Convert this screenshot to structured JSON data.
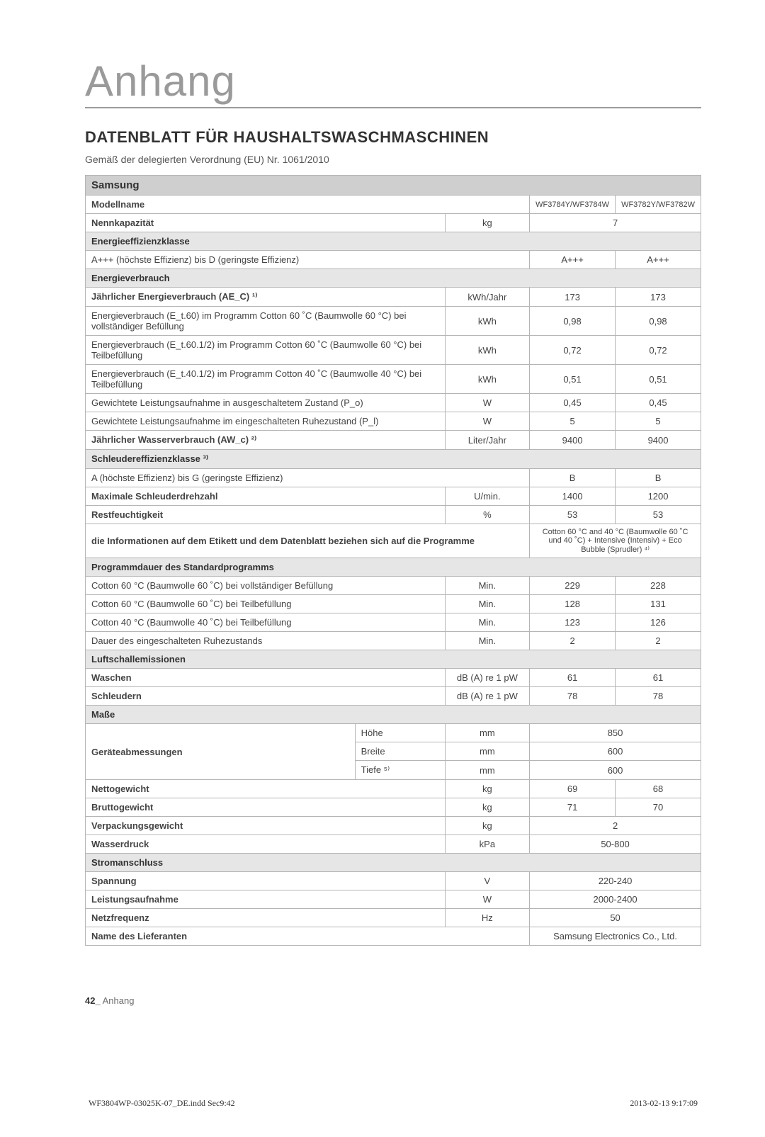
{
  "page_title": "Anhang",
  "section_title": "DATENBLATT FÜR HAUSHALTSWASCHMASCHINEN",
  "regulation_note": "Gemäß der delegierten Verordnung (EU) Nr. 1061/2010",
  "brand_row": "Samsung",
  "model_header": "Modellname",
  "models": [
    "WF3784Y/WF3784W",
    "WF3782Y/WF3782W"
  ],
  "rows": {
    "capacity": {
      "label": "Nennkapazität",
      "unit": "kg",
      "val": "7"
    },
    "eff_class_hdr": "Energieeffizienzklasse",
    "eff_class": {
      "label": "A+++ (höchste Effizienz) bis D (geringste Effizienz)",
      "v1": "A+++",
      "v2": "A+++"
    },
    "energy_hdr": "Energieverbrauch",
    "annual_energy": {
      "label": "Jährlicher Energieverbrauch (AE_C) ¹⁾",
      "unit": "kWh/Jahr",
      "v1": "173",
      "v2": "173"
    },
    "e_t60": {
      "label": "Energieverbrauch (E_t.60) im Programm Cotton 60 ˚C (Baumwolle 60 °C) bei vollständiger Befüllung",
      "unit": "kWh",
      "v1": "0,98",
      "v2": "0,98"
    },
    "e_t60_half": {
      "label": "Energieverbrauch (E_t.60.1/2) im Programm Cotton 60 ˚C (Baumwolle 60 °C) bei Teilbefüllung",
      "unit": "kWh",
      "v1": "0,72",
      "v2": "0,72"
    },
    "e_t40_half": {
      "label": "Energieverbrauch (E_t.40.1/2) im Programm Cotton 40 ˚C (Baumwolle 40 °C) bei Teilbefüllung",
      "unit": "kWh",
      "v1": "0,51",
      "v2": "0,51"
    },
    "p_o": {
      "label": "Gewichtete Leistungsaufnahme in ausgeschaltetem Zustand (P_o)",
      "unit": "W",
      "v1": "0,45",
      "v2": "0,45"
    },
    "p_l": {
      "label": "Gewichtete Leistungsaufnahme im eingeschalteten Ruhezustand (P_l)",
      "unit": "W",
      "v1": "5",
      "v2": "5"
    },
    "water": {
      "label": "Jährlicher Wasserverbrauch (AW_c) ²⁾",
      "unit": "Liter/Jahr",
      "v1": "9400",
      "v2": "9400"
    },
    "spin_hdr": "Schleudereffizienzklasse ³⁾",
    "spin_class": {
      "label": "A (höchste Effizienz) bis G (geringste Effizienz)",
      "v1": "B",
      "v2": "B"
    },
    "spin_speed": {
      "label": "Maximale Schleuderdrehzahl",
      "unit": "U/min.",
      "v1": "1400",
      "v2": "1200"
    },
    "moisture": {
      "label": "Restfeuchtigkeit",
      "unit": "%",
      "v1": "53",
      "v2": "53"
    },
    "label_info": {
      "label": "die Informationen auf dem Etikett und dem Datenblatt beziehen sich auf die Programme",
      "val": "Cotton 60 °C and 40 °C (Baumwolle 60 ˚C und 40 ˚C) + Intensive (Intensiv) + Eco Bubble (Sprudler) ⁴⁾"
    },
    "duration_hdr": "Programmdauer des Standardprogramms",
    "dur60_full": {
      "label": "Cotton 60 °C (Baumwolle 60 ˚C) bei vollständiger Befüllung",
      "unit": "Min.",
      "v1": "229",
      "v2": "228"
    },
    "dur60_half": {
      "label": "Cotton 60 °C (Baumwolle 60 ˚C) bei Teilbefüllung",
      "unit": "Min.",
      "v1": "128",
      "v2": "131"
    },
    "dur40_half": {
      "label": "Cotton 40 °C (Baumwolle 40 ˚C) bei Teilbefüllung",
      "unit": "Min.",
      "v1": "123",
      "v2": "126"
    },
    "left_on": {
      "label": "Dauer des eingeschalteten Ruhezustands",
      "unit": "Min.",
      "v1": "2",
      "v2": "2"
    },
    "noise_hdr": "Luftschallemissionen",
    "noise_wash": {
      "label": "Waschen",
      "unit": "dB (A) re 1 pW",
      "v1": "61",
      "v2": "61"
    },
    "noise_spin": {
      "label": "Schleudern",
      "unit": "dB (A) re 1 pW",
      "v1": "78",
      "v2": "78"
    },
    "dims_hdr": "Maße",
    "dims_label": "Geräteabmessungen",
    "dim_h": {
      "sub": "Höhe",
      "unit": "mm",
      "val": "850"
    },
    "dim_w": {
      "sub": "Breite",
      "unit": "mm",
      "val": "600"
    },
    "dim_d": {
      "sub": "Tiefe ⁵⁾",
      "unit": "mm",
      "val": "600"
    },
    "net_wt": {
      "label": "Nettogewicht",
      "unit": "kg",
      "v1": "69",
      "v2": "68"
    },
    "gross_wt": {
      "label": "Bruttogewicht",
      "unit": "kg",
      "v1": "71",
      "v2": "70"
    },
    "pack_wt": {
      "label": "Verpackungsgewicht",
      "unit": "kg",
      "val": "2"
    },
    "pressure": {
      "label": "Wasserdruck",
      "unit": "kPa",
      "val": "50-800"
    },
    "elec_hdr": "Stromanschluss",
    "voltage": {
      "label": "Spannung",
      "unit": "V",
      "val": "220-240"
    },
    "power": {
      "label": "Leistungsaufnahme",
      "unit": "W",
      "val": "2000-2400"
    },
    "freq": {
      "label": "Netzfrequenz",
      "unit": "Hz",
      "val": "50"
    },
    "supplier": {
      "label": "Name des Lieferanten",
      "val": "Samsung Electronics Co., Ltd."
    }
  },
  "footer": {
    "page_num": "42_",
    "section": " Anhang"
  },
  "print_footer": {
    "file": "WF3804WP-03025K-07_DE.indd   Sec9:42",
    "timestamp": "2013-02-13   9:17:09"
  }
}
